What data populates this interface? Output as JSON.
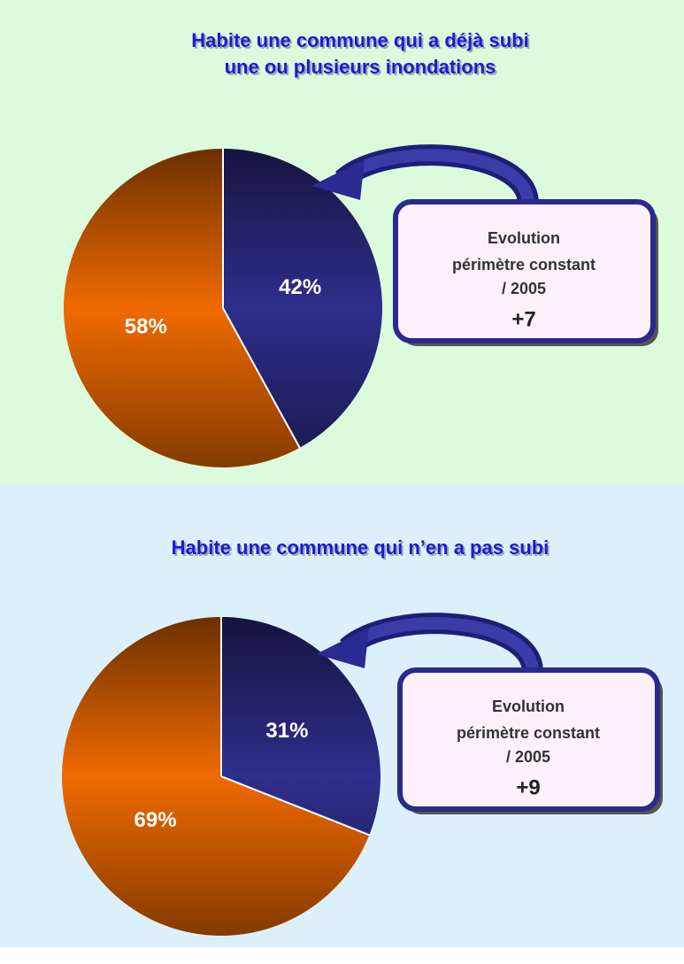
{
  "chart_data": [
    {
      "type": "pie",
      "title": [
        "Habite une commune qui a déjà subi",
        "une ou plusieurs inondations"
      ],
      "values": [
        42,
        58
      ],
      "value_labels": [
        "42%",
        "58%"
      ],
      "colors": [
        "#2e2e8c",
        "#f06a00"
      ],
      "annotation": [
        "Evolution",
        "périmètre constant",
        "/ 2005",
        "+7"
      ]
    },
    {
      "type": "pie",
      "title": [
        "Habite une commune qui n’en a pas subi"
      ],
      "values": [
        31,
        69
      ],
      "value_labels": [
        "31%",
        "69%"
      ],
      "colors": [
        "#2e2e8c",
        "#f06a00"
      ],
      "annotation": [
        "Evolution",
        "périmètre constant",
        "/ 2005",
        "+9"
      ]
    }
  ]
}
